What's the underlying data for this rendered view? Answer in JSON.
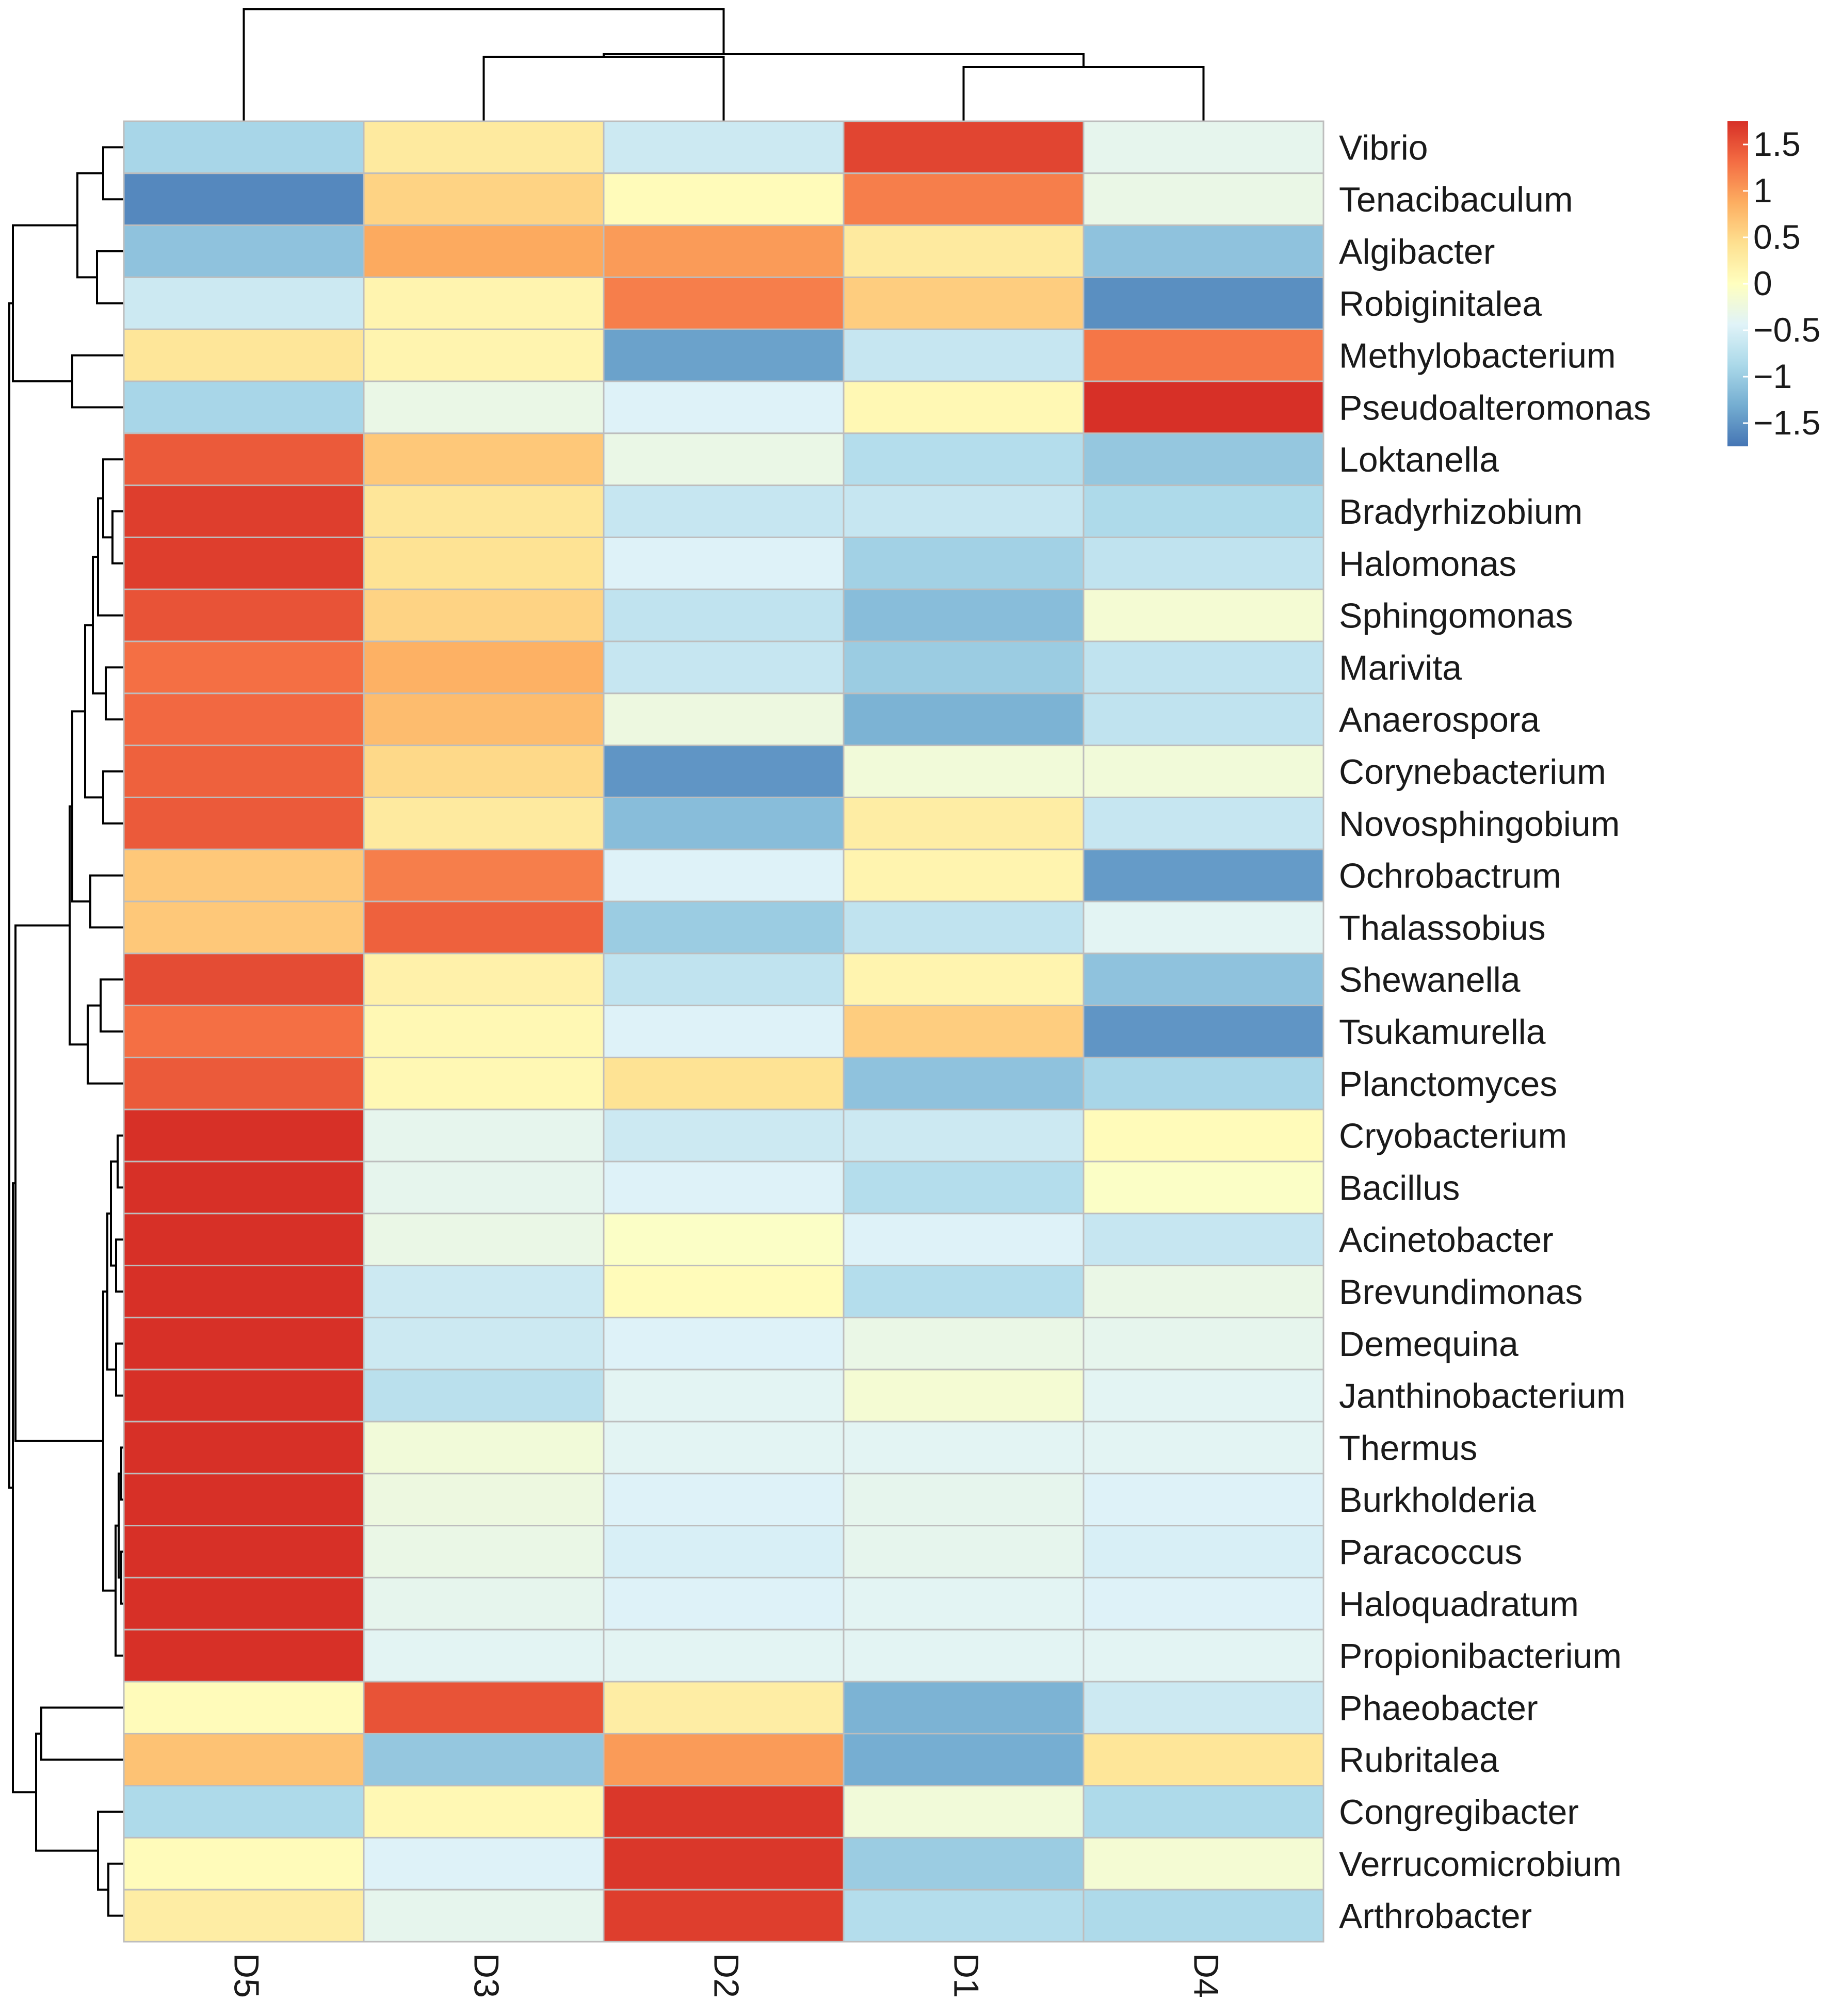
{
  "chart_data": {
    "type": "heatmap",
    "title": "",
    "columns": [
      "D5",
      "D3",
      "D2",
      "D1",
      "D4"
    ],
    "rows": [
      "Vibrio",
      "Tenacibaculum",
      "Algibacter",
      "Robiginitalea",
      "Methylobacterium",
      "Pseudoalteromonas",
      "Loktanella",
      "Bradyrhizobium",
      "Halomonas",
      "Sphingomonas",
      "Marivita",
      "Anaerospora",
      "Corynebacterium",
      "Novosphingobium",
      "Ochrobactrum",
      "Thalassobius",
      "Shewanella",
      "Tsukamurella",
      "Planctomyces",
      "Cryobacterium",
      "Bacillus",
      "Acinetobacter",
      "Brevundimonas",
      "Demequina",
      "Janthinobacterium",
      "Thermus",
      "Burkholderia",
      "Paracoccus",
      "Haloquadratum",
      "Propionibacterium",
      "Phaeobacter",
      "Rubritalea",
      "Congregibacter",
      "Verrucomicrobium",
      "Arthrobacter"
    ],
    "values": [
      [
        -0.9,
        0.3,
        -0.6,
        1.6,
        -0.35
      ],
      [
        -1.6,
        0.55,
        0.05,
        1.2,
        -0.3
      ],
      [
        -1.1,
        0.9,
        1.0,
        0.3,
        -1.1
      ],
      [
        -0.6,
        0.15,
        1.2,
        0.6,
        -1.55
      ],
      [
        0.35,
        0.15,
        -1.4,
        -0.65,
        1.25
      ],
      [
        -0.9,
        -0.3,
        -0.45,
        0.1,
        1.75
      ],
      [
        1.45,
        0.65,
        -0.3,
        -0.8,
        -1.05
      ],
      [
        1.65,
        0.35,
        -0.65,
        -0.65,
        -0.85
      ],
      [
        1.65,
        0.4,
        -0.45,
        -0.95,
        -0.7
      ],
      [
        1.5,
        0.55,
        -0.7,
        -1.15,
        -0.15
      ],
      [
        1.3,
        0.85,
        -0.65,
        -1.0,
        -0.7
      ],
      [
        1.35,
        0.75,
        -0.25,
        -1.25,
        -0.7
      ],
      [
        1.4,
        0.5,
        -1.5,
        -0.2,
        -0.2
      ],
      [
        1.45,
        0.3,
        -1.15,
        0.25,
        -0.65
      ],
      [
        0.65,
        1.2,
        -0.45,
        0.15,
        -1.45
      ],
      [
        0.65,
        1.4,
        -1.0,
        -0.7,
        -0.4
      ],
      [
        1.55,
        0.2,
        -0.7,
        0.15,
        -1.1
      ],
      [
        1.3,
        0.1,
        -0.45,
        0.6,
        -1.5
      ],
      [
        1.45,
        0.1,
        0.4,
        -1.1,
        -0.9
      ],
      [
        1.75,
        -0.35,
        -0.6,
        -0.6,
        0.05
      ],
      [
        1.75,
        -0.35,
        -0.45,
        -0.8,
        -0.05
      ],
      [
        1.75,
        -0.3,
        -0.05,
        -0.45,
        -0.65
      ],
      [
        1.75,
        -0.6,
        0.05,
        -0.8,
        -0.3
      ],
      [
        1.75,
        -0.6,
        -0.45,
        -0.3,
        -0.35
      ],
      [
        1.75,
        -0.75,
        -0.4,
        -0.15,
        -0.4
      ],
      [
        1.75,
        -0.2,
        -0.4,
        -0.4,
        -0.4
      ],
      [
        1.75,
        -0.25,
        -0.45,
        -0.35,
        -0.45
      ],
      [
        1.75,
        -0.3,
        -0.5,
        -0.35,
        -0.5
      ],
      [
        1.75,
        -0.35,
        -0.45,
        -0.4,
        -0.45
      ],
      [
        1.75,
        -0.4,
        -0.4,
        -0.4,
        -0.4
      ],
      [
        0.05,
        1.5,
        0.25,
        -1.25,
        -0.6
      ],
      [
        0.7,
        -1.05,
        1.0,
        -1.3,
        0.35
      ],
      [
        -0.85,
        0.1,
        1.7,
        -0.2,
        -0.85
      ],
      [
        0.05,
        -0.45,
        1.7,
        -1.0,
        -0.15
      ],
      [
        0.25,
        -0.35,
        1.65,
        -0.8,
        -0.85
      ]
    ],
    "legend": {
      "ticks": [
        "1.5",
        "1",
        "0.5",
        "0",
        "−0.5",
        "−1",
        "−1.5"
      ],
      "tick_values": [
        1.5,
        1,
        0.5,
        0,
        -0.5,
        -1,
        -1.5
      ],
      "range": [
        -1.75,
        1.75
      ],
      "position": "top-right"
    },
    "colorscale": [
      "#4575b4",
      "#74add1",
      "#abd9e9",
      "#e0f3f8",
      "#ffffbf",
      "#fee090",
      "#fdae61",
      "#f46d43",
      "#d73027"
    ],
    "row_dendrogram": "left",
    "col_dendrogram": "top"
  }
}
